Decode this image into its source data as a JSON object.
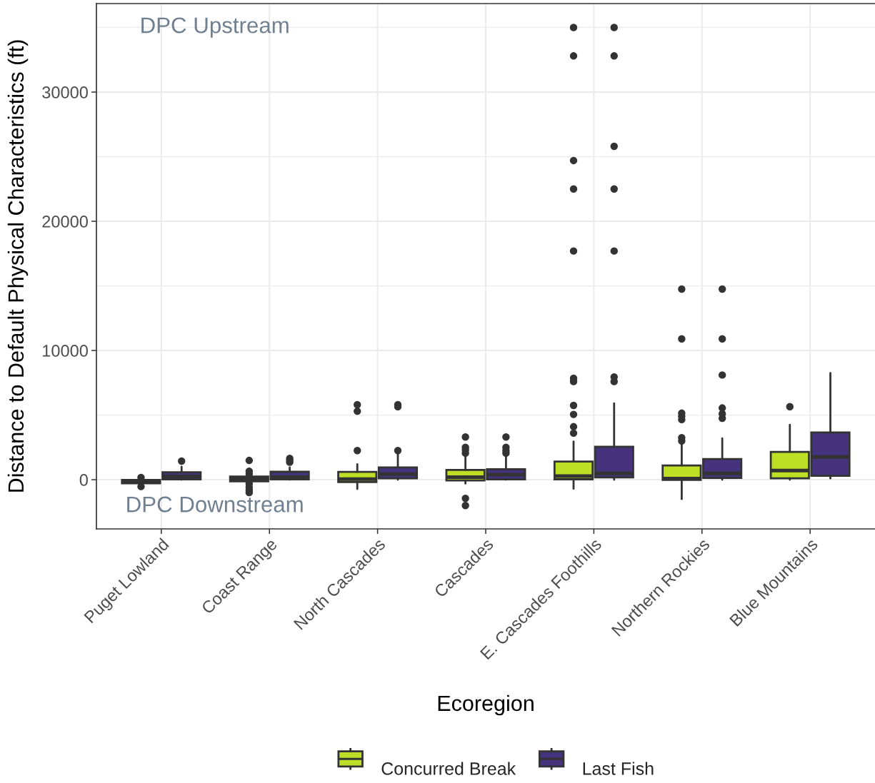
{
  "chart_data": {
    "type": "box",
    "xlabel": "Ecoregion",
    "ylabel": "Distance to Default Physical Characteristics (ft)",
    "categories": [
      "Puget Lowland",
      "Coast Range",
      "North Cascades",
      "Cascades",
      "E. Cascades Foothills",
      "Northern Rockies",
      "Blue Mountains"
    ],
    "series": [
      {
        "name": "Concurred Break",
        "color": "#bddf26",
        "boxes": [
          {
            "low": -350,
            "q1": -280,
            "median": -120,
            "q3": -20,
            "high": 50,
            "outliers": [
              170,
              -530
            ]
          },
          {
            "low": -200,
            "q1": -130,
            "median": 60,
            "q3": 240,
            "high": 400,
            "outliers": [
              1490,
              660,
              450,
              -300,
              -590,
              -810,
              -1000
            ]
          },
          {
            "low": -720,
            "q1": -180,
            "median": 50,
            "q3": 600,
            "high": 1200,
            "outliers": [
              5800,
              5300,
              2250
            ]
          },
          {
            "low": -300,
            "q1": -60,
            "median": 200,
            "q3": 750,
            "high": 1800,
            "outliers": [
              3300,
              2500,
              2300,
              2050,
              -1450,
              -2000
            ]
          },
          {
            "low": -700,
            "q1": 30,
            "median": 280,
            "q3": 1400,
            "high": 2950,
            "outliers": [
              35000,
              32800,
              24700,
              22500,
              17700,
              7850,
              7600,
              5750,
              5050,
              4100,
              3600
            ]
          },
          {
            "low": -1500,
            "q1": -20,
            "median": 80,
            "q3": 1100,
            "high": 2800,
            "outliers": [
              14750,
              10900,
              5150,
              4900,
              4650,
              3250,
              3000
            ]
          },
          {
            "low": 0,
            "q1": 100,
            "median": 700,
            "q3": 2150,
            "high": 4250,
            "outliers": [
              5650
            ]
          }
        ]
      },
      {
        "name": "Last Fish",
        "color": "#46337e",
        "boxes": [
          {
            "low": 0,
            "q1": 20,
            "median": 250,
            "q3": 570,
            "high": 1000,
            "outliers": [
              1440
            ]
          },
          {
            "low": 0,
            "q1": 20,
            "median": 200,
            "q3": 610,
            "high": 950,
            "outliers": [
              1650,
              1500,
              1350
            ]
          },
          {
            "low": 0,
            "q1": 100,
            "median": 430,
            "q3": 950,
            "high": 2100,
            "outliers": [
              5800,
              5650,
              2250
            ]
          },
          {
            "low": 0,
            "q1": 20,
            "median": 390,
            "q3": 810,
            "high": 1900,
            "outliers": [
              3300,
              2500,
              2250,
              2050
            ]
          },
          {
            "low": 0,
            "q1": 180,
            "median": 480,
            "q3": 2550,
            "high": 5900,
            "outliers": [
              35000,
              32800,
              25800,
              22500,
              17700,
              7950,
              7600
            ]
          },
          {
            "low": 0,
            "q1": 130,
            "median": 480,
            "q3": 1600,
            "high": 3200,
            "outliers": [
              14750,
              10900,
              8100,
              5550,
              5100,
              4750
            ]
          },
          {
            "low": 100,
            "q1": 300,
            "median": 1750,
            "q3": 3650,
            "high": 8250
          }
        ]
      }
    ],
    "ylim": [
      -3810,
      36850
    ],
    "yticks": [
      0,
      10000,
      20000,
      30000
    ],
    "grid": true,
    "legend": "bottom",
    "annotations": [
      "DPC Upstream",
      "DPC Downstream"
    ]
  }
}
